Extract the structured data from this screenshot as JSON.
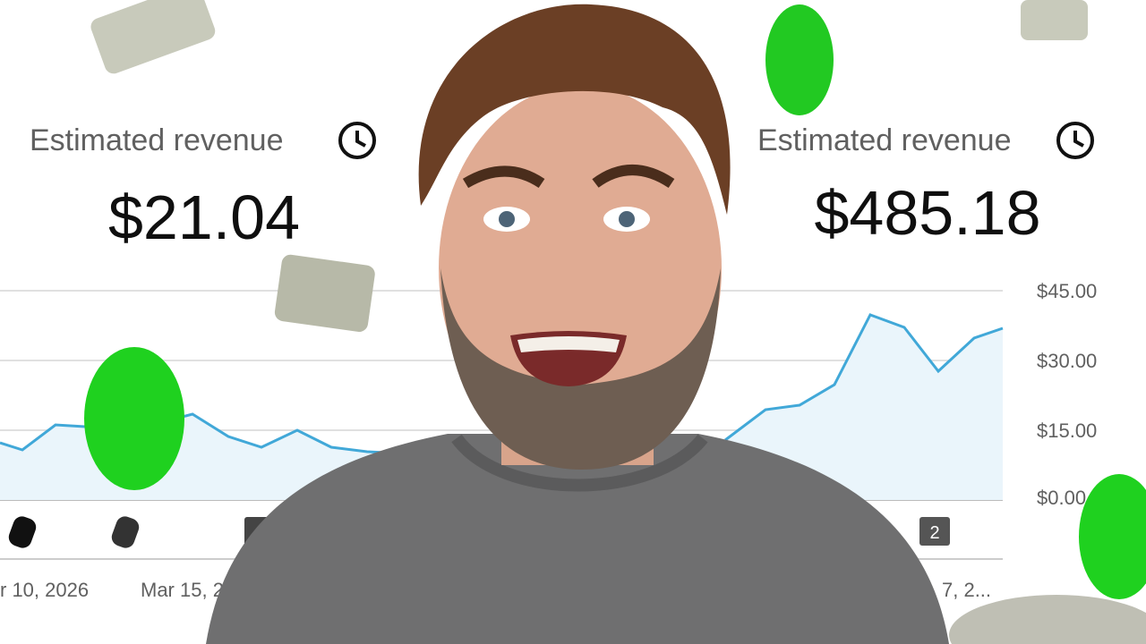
{
  "left": {
    "label": "Estimated revenue",
    "value": "$21.04"
  },
  "right": {
    "label": "Estimated revenue",
    "value": "$485.18"
  },
  "axis": {
    "ticks": [
      "$45.00",
      "$30.00",
      "$15.00",
      "$0.00"
    ],
    "dates": [
      "r 10, 2026",
      "Mar 15, 2",
      "7, 2..."
    ]
  },
  "badges": [
    "2"
  ]
}
